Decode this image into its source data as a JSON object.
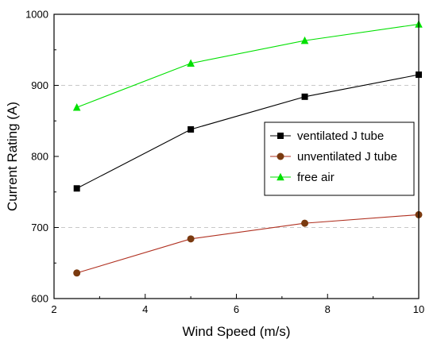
{
  "chart_data": {
    "type": "line",
    "title": "",
    "xlabel": "Wind Speed (m/s)",
    "ylabel": "Current Rating (A)",
    "xlim": [
      2,
      10
    ],
    "ylim": [
      600,
      1000
    ],
    "xticks": [
      2,
      4,
      6,
      8,
      10
    ],
    "yticks": [
      600,
      700,
      800,
      900,
      1000
    ],
    "grid": "horizontal dashed at 700 and 900",
    "legend_position": "right-middle",
    "x": [
      2.5,
      5,
      7.5,
      10
    ],
    "series": [
      {
        "name": "ventilated J tube",
        "values": [
          755,
          838,
          884,
          915
        ],
        "color": "#000000",
        "marker": "square"
      },
      {
        "name": "unventilated J tube",
        "values": [
          636,
          684,
          706,
          718
        ],
        "color": "#b03020",
        "marker_color": "#7a3a10",
        "marker": "circle"
      },
      {
        "name": "free air",
        "values": [
          869,
          931,
          963,
          986
        ],
        "color": "#00e000",
        "marker": "triangle"
      }
    ]
  }
}
